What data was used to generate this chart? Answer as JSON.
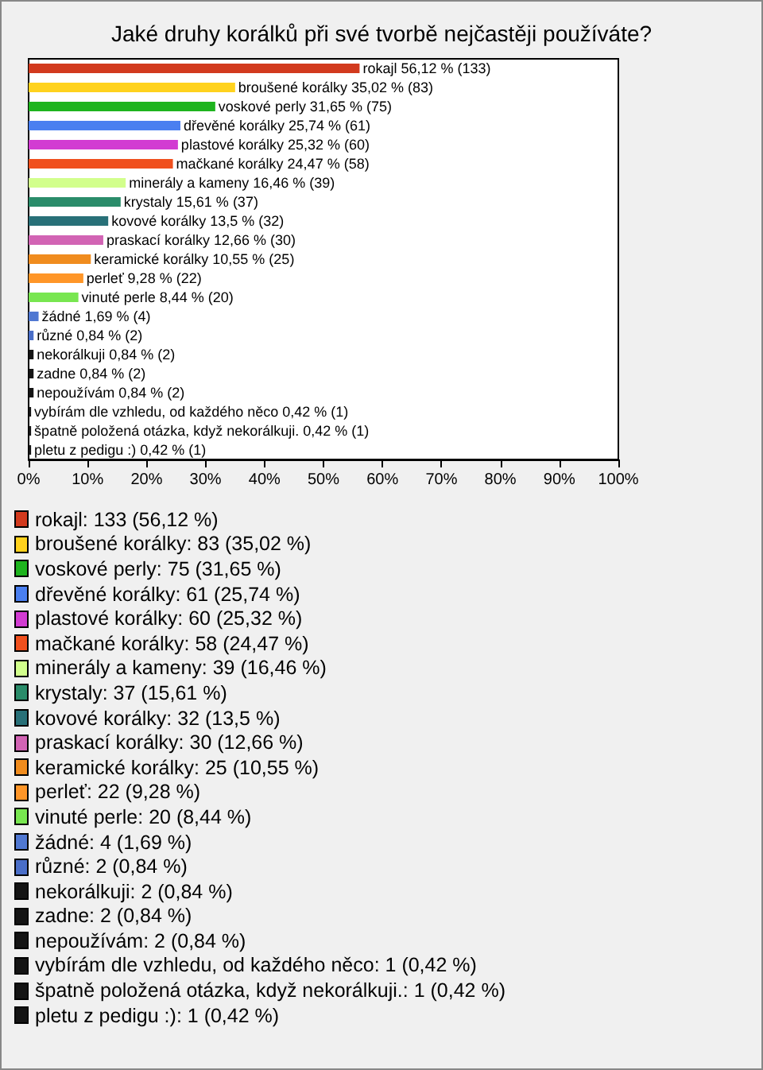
{
  "chart_data": {
    "type": "bar",
    "orientation": "horizontal",
    "title": "Jaké druhy korálků při své tvorbě nejčastěji používáte?",
    "categories": [
      "rokajl",
      "broušené korálky",
      "voskové perly",
      "dřevěné korálky",
      "plastové korálky",
      "mačkané korálky",
      "minerály a kameny",
      "krystaly",
      "kovové korálky",
      "praskací korálky",
      "keramické korálky",
      "perleť",
      "vinuté perle",
      "žádné",
      "různé",
      "nekorálkuji",
      "zadne",
      "nepoužívám",
      "vybírám dle vzhledu, od každého něco",
      "špatně položená otázka, když nekorálkuji.",
      "pletu z pedigu :)"
    ],
    "values": [
      56.12,
      35.02,
      31.65,
      25.74,
      25.32,
      24.47,
      16.46,
      15.61,
      13.5,
      12.66,
      10.55,
      9.28,
      8.44,
      1.69,
      0.84,
      0.84,
      0.84,
      0.84,
      0.42,
      0.42,
      0.42
    ],
    "colors": [
      "#d23a1e",
      "#ffd21e",
      "#1eb41e",
      "#4a7ff0",
      "#d23cd2",
      "#f0501e",
      "#d2ff8c",
      "#2a8c6a",
      "#287078",
      "#d264b4",
      "#f08c1e",
      "#ff9628",
      "#78e650",
      "#5078d2",
      "#4a6ec8",
      "#141414",
      "#141414",
      "#141414",
      "#141414",
      "#141414",
      "#141414"
    ],
    "xlim": [
      0,
      100
    ],
    "xticks": [
      {
        "value": 0,
        "label": "0%"
      },
      {
        "value": 10,
        "label": "10%"
      },
      {
        "value": 20,
        "label": "20%"
      },
      {
        "value": 30,
        "label": "30%"
      },
      {
        "value": 40,
        "label": "40%"
      },
      {
        "value": 50,
        "label": "50%"
      },
      {
        "value": 60,
        "label": "60%"
      },
      {
        "value": 70,
        "label": "70%"
      },
      {
        "value": 80,
        "label": "80%"
      },
      {
        "value": 90,
        "label": "90%"
      },
      {
        "value": 100,
        "label": "100%"
      }
    ],
    "tick_labels": "x",
    "annotations": [
      "56,12 % (133)",
      "35,02 % (83)",
      "31,65 % (75)",
      "25,74 % (61)",
      "25,32 % (60)",
      "24,47 % (58)",
      "16,46 % (39)",
      "15,61 % (37)",
      "13,5 % (32)",
      "12,66 % (30)",
      "10,55 % (25)",
      "9,28 % (22)",
      "8,44 % (20)",
      "1,69 % (4)",
      "0,84 % (2)",
      "0,84 % (2)",
      "0,84 % (2)",
      "0,84 % (2)",
      "0,42 % (1)",
      "0,42 % (1)",
      "0,42 % (1)",
      "rokajl: 133 (56,12 %)",
      "broušené korálky: 83 (35,02 %)",
      "voskové perly: 75 (31,65 %)",
      "dřevěné korálky: 61 (25,74 %)",
      "plastové korálky: 60 (25,32 %)",
      "mačkané korálky: 58 (24,47 %)",
      "minerály a kameny: 39 (16,46 %)",
      "krystaly: 37 (15,61 %)",
      "kovové korálky: 32 (13,5 %)",
      "praskací korálky: 30 (12,66 %)",
      "keramické korálky: 25 (10,55 %)",
      "perleť: 22 (9,28 %)",
      "vinuté perle: 20 (8,44 %)",
      "žádné: 4 (1,69 %)",
      "různé: 2 (0,84 %)",
      "nekorálkuji: 2 (0,84 %)",
      "zadne: 2 (0,84 %)",
      "nepoužívám: 2 (0,84 %)",
      "vybírám dle vzhledu, od každého něco: 1 (0,42 %)",
      "špatně položená otázka, když nekorálkuji.: 1 (0,42 %)",
      "pletu z pedigu :): 1 (0,42 %)"
    ]
  }
}
